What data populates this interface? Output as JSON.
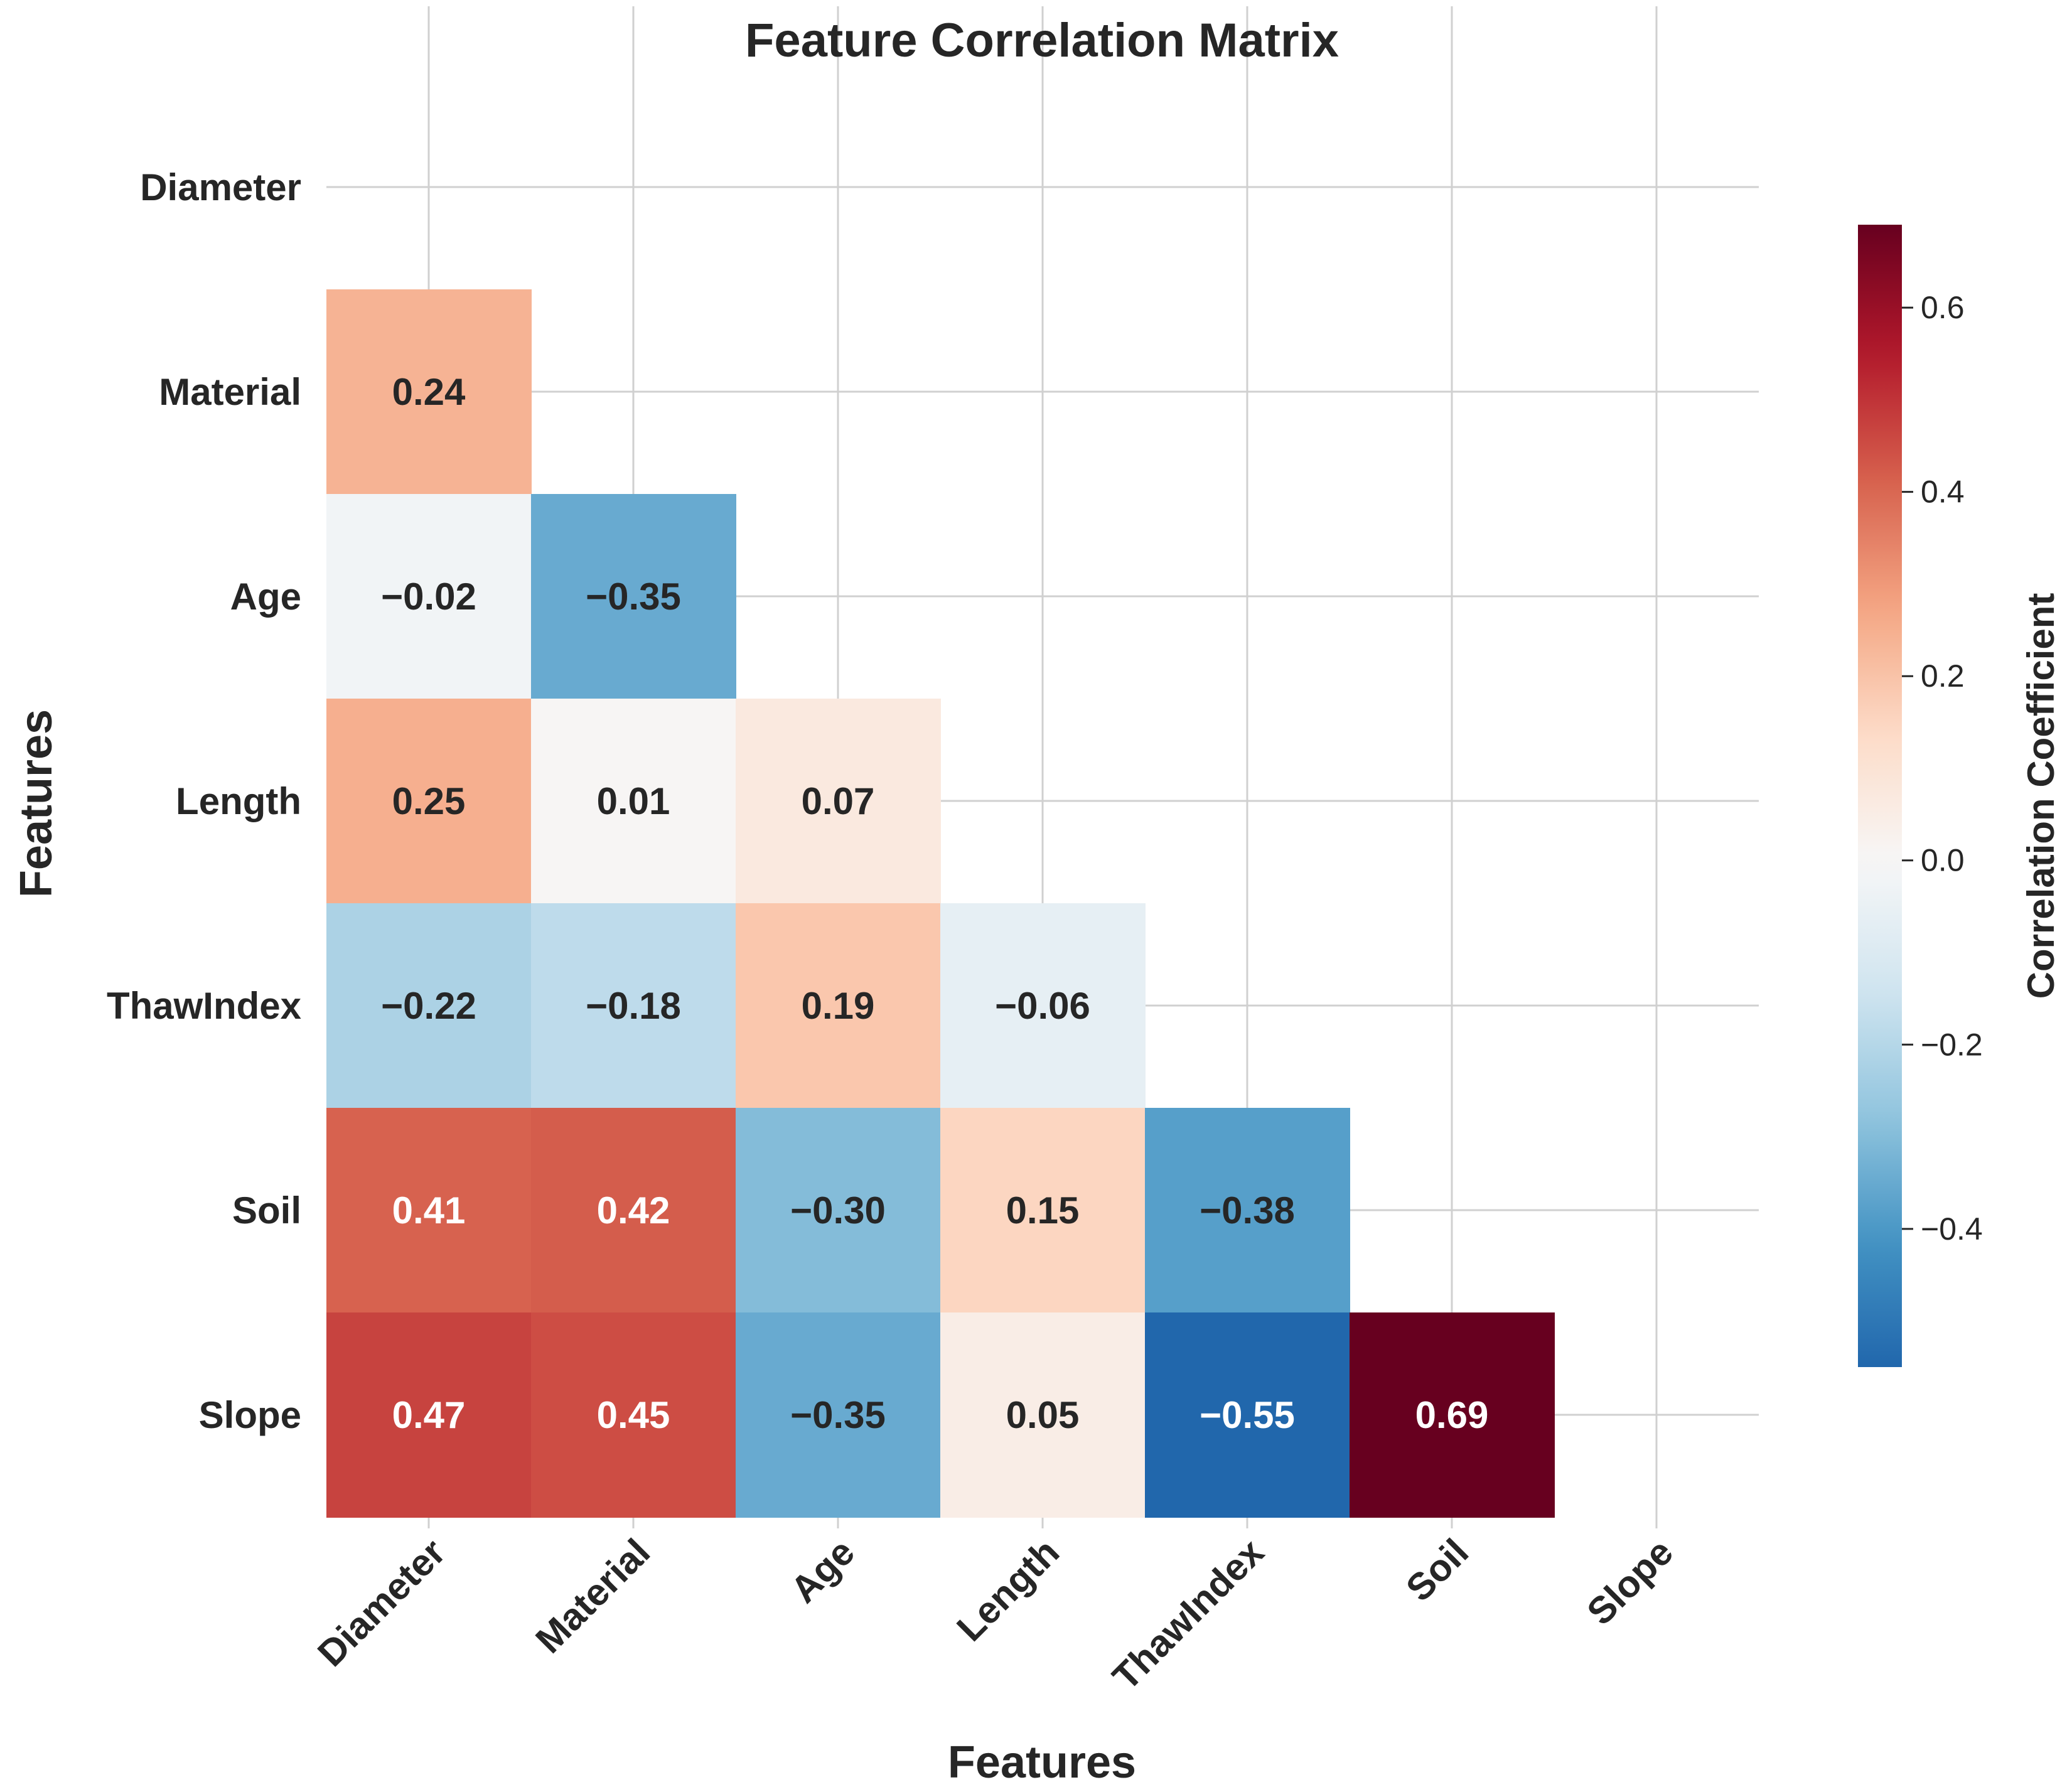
{
  "chart_data": {
    "type": "heatmap",
    "title": "Feature Correlation Matrix",
    "xlabel": "Features",
    "ylabel": "Features",
    "features": [
      "Diameter",
      "Material",
      "Age",
      "Length",
      "ThawIndex",
      "Soil",
      "Slope"
    ],
    "mask": "upper-triangle-including-diagonal",
    "matrix": [
      [
        null,
        null,
        null,
        null,
        null,
        null,
        null
      ],
      [
        0.24,
        null,
        null,
        null,
        null,
        null,
        null
      ],
      [
        -0.02,
        -0.35,
        null,
        null,
        null,
        null,
        null
      ],
      [
        0.25,
        0.01,
        0.07,
        null,
        null,
        null,
        null
      ],
      [
        -0.22,
        -0.18,
        0.19,
        -0.06,
        null,
        null,
        null
      ],
      [
        0.41,
        0.42,
        -0.3,
        0.15,
        -0.38,
        null,
        null
      ],
      [
        0.47,
        0.45,
        -0.35,
        0.05,
        -0.55,
        0.69,
        null
      ]
    ],
    "cell_labels": [
      [
        null,
        null,
        null,
        null,
        null,
        null,
        null
      ],
      [
        "0.24",
        null,
        null,
        null,
        null,
        null,
        null
      ],
      [
        "−0.02",
        "−0.35",
        null,
        null,
        null,
        null,
        null
      ],
      [
        "0.25",
        "0.01",
        "0.07",
        null,
        null,
        null,
        null
      ],
      [
        "−0.22",
        "−0.18",
        "0.19",
        "−0.06",
        null,
        null,
        null
      ],
      [
        "0.41",
        "0.42",
        "−0.30",
        "0.15",
        "−0.38",
        null,
        null
      ],
      [
        "0.47",
        "0.45",
        "−0.35",
        "0.05",
        "−0.55",
        "0.69",
        null
      ]
    ],
    "colormap": "RdBu_r",
    "vmin": -0.55,
    "vmax": 0.69,
    "colorbar": {
      "label": "Correlation Coefficient",
      "ticks": [
        -0.4,
        -0.2,
        0.0,
        0.2,
        0.4,
        0.6
      ],
      "tick_labels": [
        "−0.4",
        "−0.2",
        "0.0",
        "0.2",
        "0.4",
        "0.6"
      ]
    },
    "grid": true
  }
}
